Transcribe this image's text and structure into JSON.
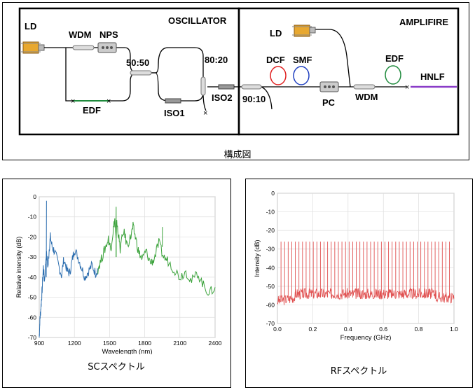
{
  "setup": {
    "caption": "構成図",
    "oscillator_title": "OSCILLATOR",
    "amplifier_title": "AMPLIFIRE",
    "labels": {
      "ld1": "LD",
      "wdm1": "WDM",
      "nps": "NPS",
      "edf1": "EDF",
      "coupler5050": "50:50",
      "iso1": "ISO1",
      "coupler8020": "80:20",
      "iso2": "ISO2",
      "coupler9010": "90:10",
      "ld2": "LD",
      "dcf": "DCF",
      "smf": "SMF",
      "pc": "PC",
      "wdm2": "WDM",
      "edf2": "EDF",
      "hnlf": "HNLF"
    },
    "colors": {
      "dcf": "#e02020",
      "smf": "#2040c0",
      "edf2": "#1e8a3c",
      "edf1": "#1e8a3c",
      "hnlf": "#8a3cc8"
    }
  },
  "sc_panel": {
    "caption": "SCスペクトル"
  },
  "rf_panel": {
    "caption": "RFスペクトル"
  },
  "chart_data": [
    {
      "type": "line",
      "xlabel": "Wavelength (nm)",
      "ylabel": "Relative intensity (dB)",
      "xlim": [
        900,
        2400
      ],
      "ylim": [
        -70,
        0
      ],
      "xticks": [
        900,
        1200,
        1500,
        1800,
        2100,
        2400
      ],
      "yticks": [
        0,
        -10,
        -20,
        -30,
        -40,
        -50,
        -60,
        -70
      ],
      "grid": true,
      "series": [
        {
          "color": "#2e6fb0",
          "x": [
            900,
            905,
            910,
            918,
            925,
            935,
            945,
            960,
            975,
            985,
            995,
            1010,
            1030,
            1060,
            1090,
            1110,
            1140,
            1160,
            1180,
            1200,
            1230,
            1260,
            1290,
            1320,
            1350,
            1380,
            1400
          ],
          "y": [
            -70,
            -62,
            -58,
            -52,
            -46,
            -35,
            -42,
            -28,
            -35,
            -26,
            -20,
            -25,
            -27,
            -33,
            -39,
            -31,
            -37,
            -38,
            -32,
            -26,
            -30,
            -35,
            -40,
            -37,
            -34,
            -38,
            -36
          ]
        },
        {
          "color": "#3aa23a",
          "x": [
            1400,
            1430,
            1460,
            1490,
            1510,
            1530,
            1545,
            1555,
            1560,
            1570,
            1590,
            1620,
            1650,
            1680,
            1700,
            1720,
            1750,
            1780,
            1810,
            1850,
            1880,
            1920,
            1960,
            2000,
            2050,
            2100,
            2150,
            2200,
            2250,
            2300,
            2350,
            2400
          ],
          "y": [
            -36,
            -31,
            -26,
            -21,
            -26,
            -17,
            -11,
            -22,
            -13,
            -16,
            -26,
            -17,
            -24,
            -20,
            -15,
            -20,
            -28,
            -31,
            -27,
            -33,
            -31,
            -23,
            -30,
            -32,
            -36,
            -40,
            -37,
            -42,
            -38,
            -44,
            -48,
            -45
          ]
        },
        {
          "color": "#3aa23a",
          "name": "",
          "x": [
            1555,
            1556,
            1557
          ],
          "y": [
            -30,
            -5,
            -30
          ]
        }
      ]
    },
    {
      "type": "line",
      "xlabel": "Frequency (GHz)",
      "ylabel": "Intensity (dB)",
      "xlim": [
        0.0,
        1.0
      ],
      "ylim": [
        -70,
        0
      ],
      "xticks": [
        0.0,
        0.2,
        0.4,
        0.6,
        0.8,
        1.0
      ],
      "yticks": [
        0,
        -10,
        -20,
        -30,
        -40,
        -50,
        -60,
        -70
      ],
      "grid": true,
      "comb_spacing_ghz": 0.0203,
      "comb_peak_db": -26,
      "noise_floor_db": -56,
      "color": "#e05050"
    }
  ]
}
